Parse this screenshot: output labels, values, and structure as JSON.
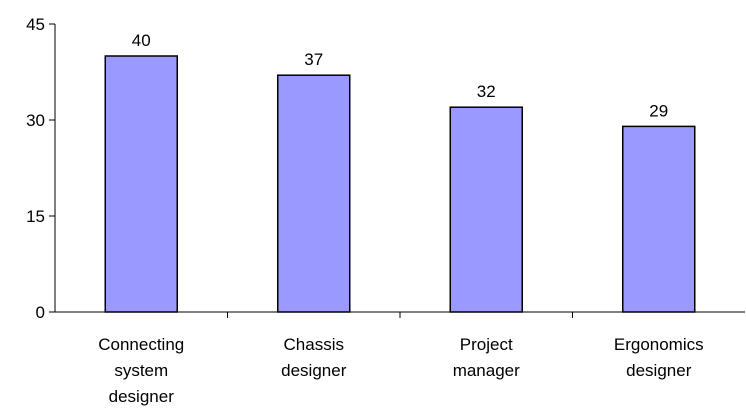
{
  "chart_data": {
    "type": "bar",
    "categories": [
      "Connecting system designer",
      "Chassis designer",
      "Project manager",
      "Ergonomics designer"
    ],
    "values": [
      40,
      37,
      32,
      29
    ],
    "color": "#9999ff",
    "ylim": [
      0,
      45
    ],
    "yticks": [
      0,
      15,
      30,
      45
    ],
    "grid": false
  }
}
